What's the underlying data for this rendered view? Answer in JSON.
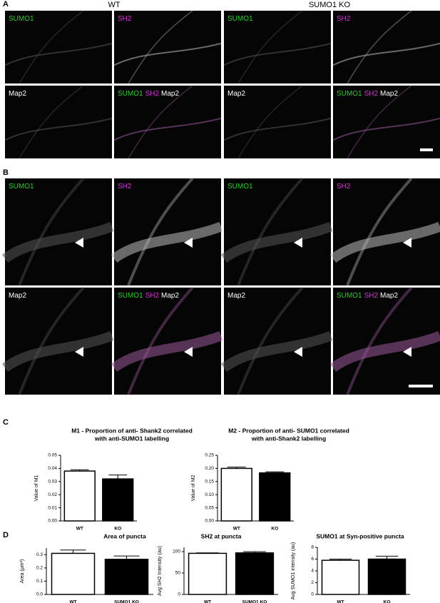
{
  "figure": {
    "panel_labels": [
      "A",
      "B",
      "C",
      "D"
    ],
    "column_headers": [
      "WT",
      "SUMO1 KO"
    ],
    "panel_a": {
      "images": [
        {
          "labels": [
            {
              "text": "SUMO1",
              "color": "#33cc33"
            }
          ]
        },
        {
          "labels": [
            {
              "text": "SH2",
              "color": "#dd33dd"
            }
          ]
        },
        {
          "labels": [
            {
              "text": "SUMO1",
              "color": "#33cc33"
            }
          ]
        },
        {
          "labels": [
            {
              "text": "SH2",
              "color": "#dd33dd"
            }
          ]
        },
        {
          "labels": [
            {
              "text": "Map2",
              "color": "#ffffff"
            }
          ]
        },
        {
          "labels": [
            {
              "text": "SUMO1",
              "color": "#33cc33"
            },
            {
              "text": "SH2",
              "color": "#dd33dd"
            },
            {
              "text": "Map2",
              "color": "#ffffff"
            }
          ]
        },
        {
          "labels": [
            {
              "text": "Map2",
              "color": "#ffffff"
            }
          ]
        },
        {
          "labels": [
            {
              "text": "SUMO1",
              "color": "#33cc33"
            },
            {
              "text": "SH2",
              "color": "#dd33dd"
            },
            {
              "text": "Map2",
              "color": "#ffffff"
            }
          ]
        }
      ]
    },
    "panel_b": {
      "images": [
        {
          "labels": [
            {
              "text": "SUMO1",
              "color": "#33cc33"
            }
          ]
        },
        {
          "labels": [
            {
              "text": "SH2",
              "color": "#dd33dd"
            }
          ]
        },
        {
          "labels": [
            {
              "text": "SUMO1",
              "color": "#33cc33"
            }
          ]
        },
        {
          "labels": [
            {
              "text": "SH2",
              "color": "#dd33dd"
            }
          ]
        },
        {
          "labels": [
            {
              "text": "Map2",
              "color": "#ffffff"
            }
          ]
        },
        {
          "labels": [
            {
              "text": "SUMO1",
              "color": "#33cc33"
            },
            {
              "text": "SH2",
              "color": "#dd33dd"
            },
            {
              "text": "Map2",
              "color": "#ffffff"
            }
          ]
        },
        {
          "labels": [
            {
              "text": "Map2",
              "color": "#ffffff"
            }
          ]
        },
        {
          "labels": [
            {
              "text": "SUMO1",
              "color": "#33cc33"
            },
            {
              "text": "SH2",
              "color": "#dd33dd"
            },
            {
              "text": "Map2",
              "color": "#ffffff"
            }
          ]
        }
      ]
    }
  },
  "chart_data": [
    {
      "type": "bar",
      "title": [
        "M1 - Proportion of anti- Shank2 correlated",
        "with anti-SUMO1 labelling"
      ],
      "y_label": "Value of M1",
      "categories": [
        "WT",
        "KO"
      ],
      "series": [
        {
          "values": [
            0.038,
            0.032
          ],
          "errors": [
            0.001,
            0.003
          ],
          "colors": [
            "#ffffff",
            "#000000"
          ]
        }
      ],
      "ylim": [
        0,
        0.05
      ],
      "yticks": [
        {
          "value": 0,
          "label": "0.00"
        },
        {
          "value": 0.01,
          "label": "0.01"
        },
        {
          "value": 0.02,
          "label": "0.02"
        },
        {
          "value": 0.03,
          "label": "0.03"
        },
        {
          "value": 0.04,
          "label": "0.04"
        },
        {
          "value": 0.05,
          "label": "0.05"
        }
      ]
    },
    {
      "type": "bar",
      "title": [
        "M2 - Proportion of anti- SUMO1 correlated",
        "with anti-Shank2 labelling"
      ],
      "y_label": "Value of M2",
      "categories": [
        "WT",
        "KO"
      ],
      "series": [
        {
          "values": [
            0.2,
            0.183
          ],
          "errors": [
            0.005,
            0.004
          ],
          "colors": [
            "#ffffff",
            "#000000"
          ]
        }
      ],
      "ylim": [
        0,
        0.25
      ],
      "yticks": [
        {
          "value": 0,
          "label": "0.00"
        },
        {
          "value": 0.05,
          "label": "0.05"
        },
        {
          "value": 0.1,
          "label": "0.10"
        },
        {
          "value": 0.15,
          "label": "0.15"
        },
        {
          "value": 0.2,
          "label": "0.20"
        },
        {
          "value": 0.25,
          "label": "0.25"
        }
      ]
    },
    {
      "type": "bar",
      "title": [
        "Area of puncta"
      ],
      "y_label": "Area (μm²)",
      "categories": [
        "WT",
        "SUMO1 KO"
      ],
      "series": [
        {
          "values": [
            0.31,
            0.265
          ],
          "errors": [
            0.025,
            0.025
          ],
          "colors": [
            "#ffffff",
            "#000000"
          ]
        }
      ],
      "ylim": [
        0,
        0.35
      ],
      "yticks": [
        {
          "value": 0,
          "label": "0.0"
        },
        0.1,
        0.2,
        0.3
      ]
    },
    {
      "type": "bar",
      "title": [
        "SH2 at puncta"
      ],
      "y_label": "Avg SH2 Intensity (au)",
      "categories": [
        "WT",
        "SUMO1 KO"
      ],
      "series": [
        {
          "values": [
            96,
            97
          ],
          "errors": [
            1,
            3
          ],
          "colors": [
            "#ffffff",
            "#000000"
          ]
        }
      ],
      "ylim": [
        0,
        110
      ],
      "yticks": [
        0,
        50,
        100
      ]
    },
    {
      "type": "bar",
      "title": [
        "SUMO1 at Syn-positive puncta"
      ],
      "y_label": "Avg SUMO1 intensity (au)",
      "categories": [
        "WT",
        "KO"
      ],
      "series": [
        {
          "values": [
            5.8,
            6.0
          ],
          "errors": [
            0.2,
            0.5
          ],
          "colors": [
            "#ffffff",
            "#000000"
          ]
        }
      ],
      "ylim": [
        0,
        8
      ],
      "yticks": [
        0,
        2,
        4,
        6,
        8
      ]
    }
  ]
}
